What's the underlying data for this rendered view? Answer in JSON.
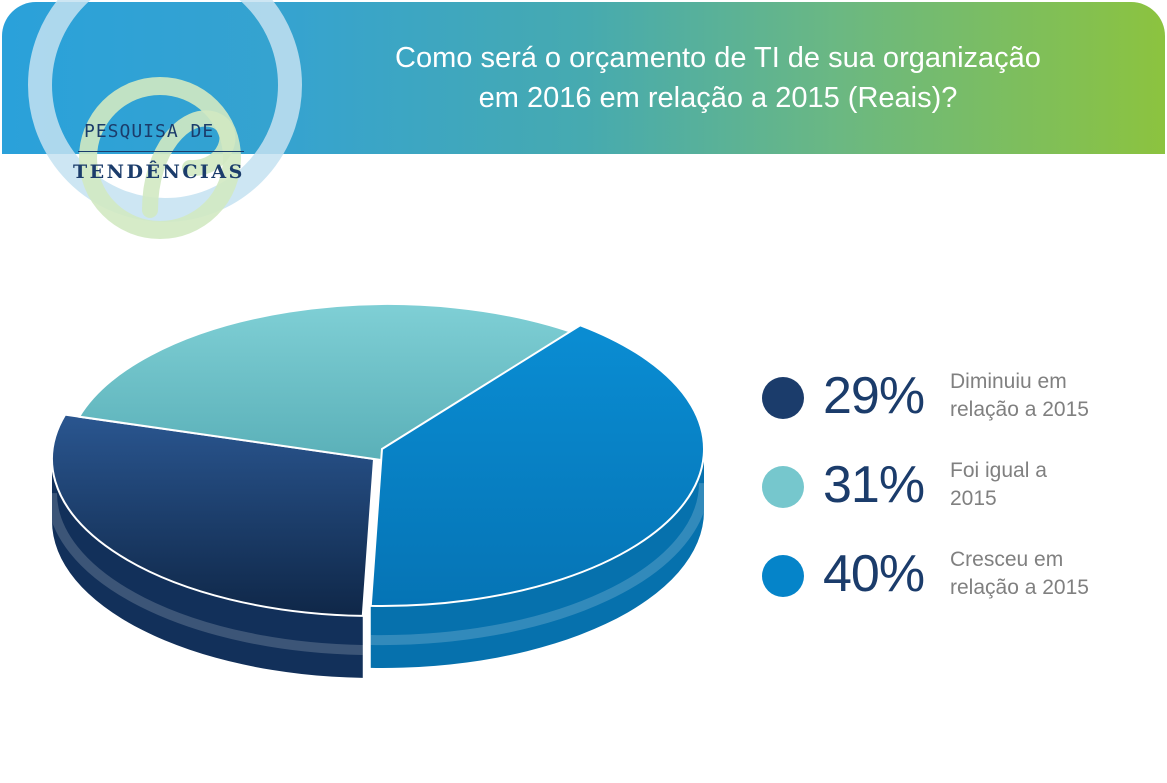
{
  "header": {
    "title_line1": "Como será o orçamento de TI de sua organização",
    "title_line2": "em 2016 em relação a 2015 (Reais)?",
    "logo_line1": "PESQUISA DE",
    "logo_line2": "TENDÊNCIAS"
  },
  "colors": {
    "diminuiu": "#1b3c6b",
    "igual": "#76c7cd",
    "cresceu": "#0584c9"
  },
  "chart_data": {
    "type": "pie",
    "style": "3d",
    "title": "Como será o orçamento de TI de sua organização em 2016 em relação a 2015 (Reais)?",
    "slices": [
      {
        "pct_label": "29%",
        "value": 29,
        "label_line1": "Diminuiu em",
        "label_line2": "relação a 2015",
        "color": "#1b3c6b"
      },
      {
        "pct_label": "31%",
        "value": 31,
        "label_line1": "Foi igual a",
        "label_line2": "2015",
        "color": "#76c7cd"
      },
      {
        "pct_label": "40%",
        "value": 40,
        "label_line1": "Cresceu em",
        "label_line2": "relação a 2015",
        "color": "#0584c9"
      }
    ],
    "legend_position": "right"
  }
}
